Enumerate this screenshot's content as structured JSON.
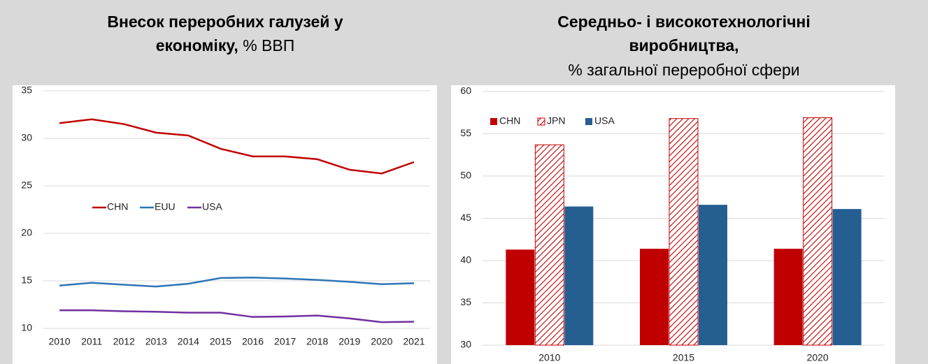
{
  "charts": [
    {
      "type": "line",
      "title": [
        "Внесок переробних галузей у",
        "економіку,"
      ],
      "unit": "% ВВП",
      "categories": [
        "2010",
        "2011",
        "2012",
        "2013",
        "2014",
        "2015",
        "2016",
        "2017",
        "2018",
        "2019",
        "2020",
        "2021"
      ],
      "series": [
        {
          "name": "CHN",
          "color": "#c00000",
          "values": [
            31.6,
            32.0,
            31.5,
            30.6,
            30.3,
            28.9,
            28.1,
            28.1,
            27.8,
            26.7,
            26.3,
            27.5
          ]
        },
        {
          "name": "EUU",
          "color": "#2e75b6",
          "values": [
            14.5,
            14.8,
            14.6,
            14.4,
            14.7,
            15.3,
            15.35,
            15.25,
            15.1,
            14.9,
            14.65,
            14.75
          ]
        },
        {
          "name": "USA",
          "color": "#7030a0",
          "values": [
            11.9,
            11.9,
            11.8,
            11.75,
            11.65,
            11.65,
            11.2,
            11.25,
            11.35,
            11.05,
            10.65,
            10.7
          ]
        }
      ],
      "ylim": [
        10,
        35
      ],
      "yticks": [
        10,
        15,
        20,
        25,
        30,
        35
      ],
      "grid": true
    },
    {
      "type": "bar",
      "title": [
        "Середньо- і високотехнологічні",
        "виробництва,"
      ],
      "unit": "% загальної переробної сфери",
      "categories": [
        "2010",
        "2015",
        "2020"
      ],
      "series": [
        {
          "name": "CHN",
          "color": "#c00000",
          "values": [
            41.3,
            41.4,
            41.4
          ]
        },
        {
          "name": "JPN",
          "color": "#c00000",
          "hatch": true,
          "values": [
            53.7,
            56.8,
            56.9
          ]
        },
        {
          "name": "USA",
          "color": "#255e91",
          "values": [
            46.4,
            46.6,
            46.1
          ]
        }
      ],
      "ylim": [
        30,
        60
      ],
      "yticks": [
        30,
        35,
        40,
        45,
        50,
        55,
        60
      ],
      "grid": true
    }
  ]
}
